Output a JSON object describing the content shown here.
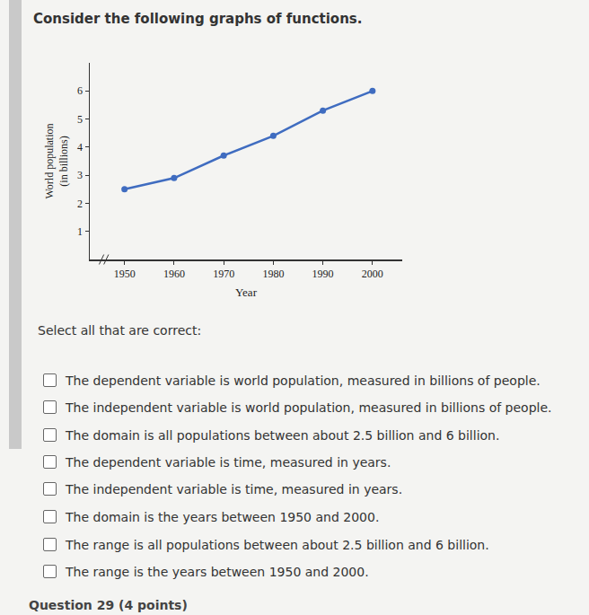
{
  "heading": "Consider the following graphs of functions.",
  "chart_data": {
    "type": "line",
    "x": [
      1950,
      1960,
      1970,
      1980,
      1990,
      2000
    ],
    "values": [
      2.5,
      2.9,
      3.7,
      4.4,
      5.3,
      6.0
    ],
    "color": "#3f6cc0",
    "marker": "circle",
    "xlabel": "Year",
    "ylabel": [
      "World population",
      "(in billions)"
    ],
    "xlim": [
      1943,
      2006
    ],
    "xticks": [
      1950,
      1960,
      1970,
      1980,
      1990,
      2000
    ],
    "ylim": [
      0,
      7
    ],
    "yticks": [
      1,
      2,
      3,
      4,
      5,
      6
    ],
    "grid": false
  },
  "prompt": "Select all that are correct:",
  "options": [
    "The dependent variable is world population, measured in billions of people.",
    "The independent variable is world population, measured in billions of people.",
    "The domain is all populations between about 2.5 billion and 6 billion.",
    "The dependent variable is time, measured in years.",
    "The independent variable is time, measured in years.",
    "The domain is the years between 1950 and 2000.",
    "The range is all populations between about 2.5 billion and 6 billion.",
    "The range is the years between 1950 and 2000."
  ],
  "footer": "Question 29 (4 points)"
}
